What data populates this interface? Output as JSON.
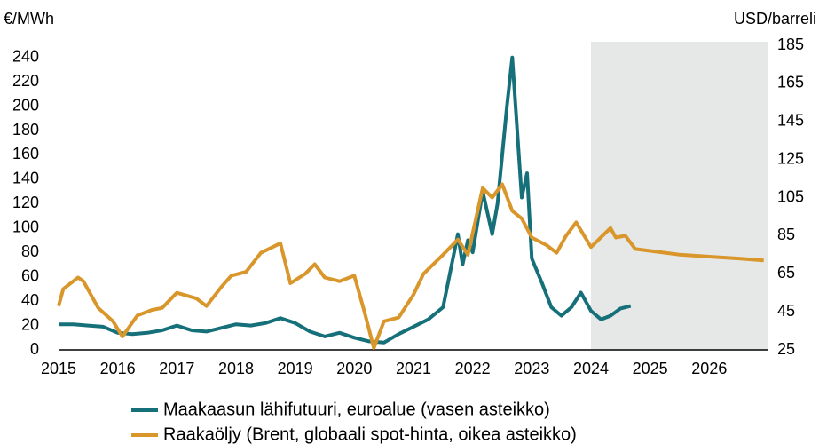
{
  "chart_data": {
    "type": "line",
    "y_label": "€/MWh",
    "y2_label": "USD/barreli",
    "xlim": [
      2015,
      2027
    ],
    "xticks": [
      2015,
      2016,
      2017,
      2018,
      2019,
      2020,
      2021,
      2022,
      2023,
      2024,
      2025,
      2026
    ],
    "ylim": [
      0,
      250
    ],
    "yticks": [
      0,
      20,
      40,
      60,
      80,
      100,
      120,
      140,
      160,
      180,
      200,
      220,
      240
    ],
    "y2lim": [
      25,
      185
    ],
    "y2ticks": [
      25,
      45,
      65,
      85,
      105,
      125,
      145,
      165,
      185
    ],
    "shade_start": 2024,
    "series": [
      {
        "name": "Maakaasun lähifutuuri, euroalue (vasen asteikko)",
        "color": "#16707a",
        "x": [
          2015.0,
          2015.25,
          2015.5,
          2015.75,
          2016.0,
          2016.25,
          2016.5,
          2016.75,
          2017.0,
          2017.25,
          2017.5,
          2017.75,
          2018.0,
          2018.25,
          2018.5,
          2018.75,
          2019.0,
          2019.25,
          2019.5,
          2019.75,
          2020.0,
          2020.25,
          2020.5,
          2020.75,
          2021.0,
          2021.25,
          2021.5,
          2021.75,
          2021.83,
          2021.92,
          2022.0,
          2022.17,
          2022.33,
          2022.42,
          2022.58,
          2022.67,
          2022.83,
          2022.92,
          2023.0,
          2023.17,
          2023.33,
          2023.5,
          2023.67,
          2023.83,
          2024.0,
          2024.17,
          2024.33,
          2024.5,
          2024.67
        ],
        "values": [
          21,
          21,
          20,
          19,
          14,
          13,
          14,
          16,
          20,
          16,
          15,
          18,
          21,
          20,
          22,
          26,
          22,
          15,
          11,
          14,
          10,
          7,
          6,
          13,
          19,
          25,
          35,
          95,
          70,
          90,
          80,
          130,
          95,
          120,
          200,
          240,
          125,
          145,
          75,
          55,
          35,
          28,
          35,
          47,
          32,
          25,
          28,
          34,
          36
        ]
      },
      {
        "name": "Raakaöljy (Brent, globaali spot-hinta, oikea asteikko)",
        "color": "#d9962b",
        "axis": "y2",
        "x": [
          2015.0,
          2015.08,
          2015.33,
          2015.42,
          2015.67,
          2015.92,
          2016.08,
          2016.33,
          2016.58,
          2016.75,
          2017.0,
          2017.33,
          2017.5,
          2017.75,
          2017.92,
          2018.17,
          2018.42,
          2018.75,
          2018.92,
          2019.17,
          2019.33,
          2019.5,
          2019.75,
          2020.0,
          2020.17,
          2020.33,
          2020.5,
          2020.75,
          2021.0,
          2021.17,
          2021.5,
          2021.75,
          2021.92,
          2022.17,
          2022.33,
          2022.5,
          2022.67,
          2022.83,
          2023.0,
          2023.25,
          2023.42,
          2023.58,
          2023.75,
          2024.0,
          2024.33,
          2024.42,
          2024.58,
          2024.75,
          2025.0,
          2025.5,
          2026.0,
          2026.5,
          2026.92
        ],
        "values": [
          48,
          57,
          63,
          61,
          47,
          40,
          32,
          43,
          46,
          47,
          55,
          52,
          48,
          58,
          64,
          66,
          76,
          81,
          60,
          65,
          70,
          63,
          61,
          64,
          45,
          26,
          40,
          42,
          54,
          65,
          75,
          83,
          75,
          110,
          105,
          112,
          98,
          94,
          84,
          80,
          76,
          85,
          92,
          79,
          89,
          84,
          85,
          78,
          77,
          75,
          74,
          73,
          72
        ]
      }
    ]
  }
}
